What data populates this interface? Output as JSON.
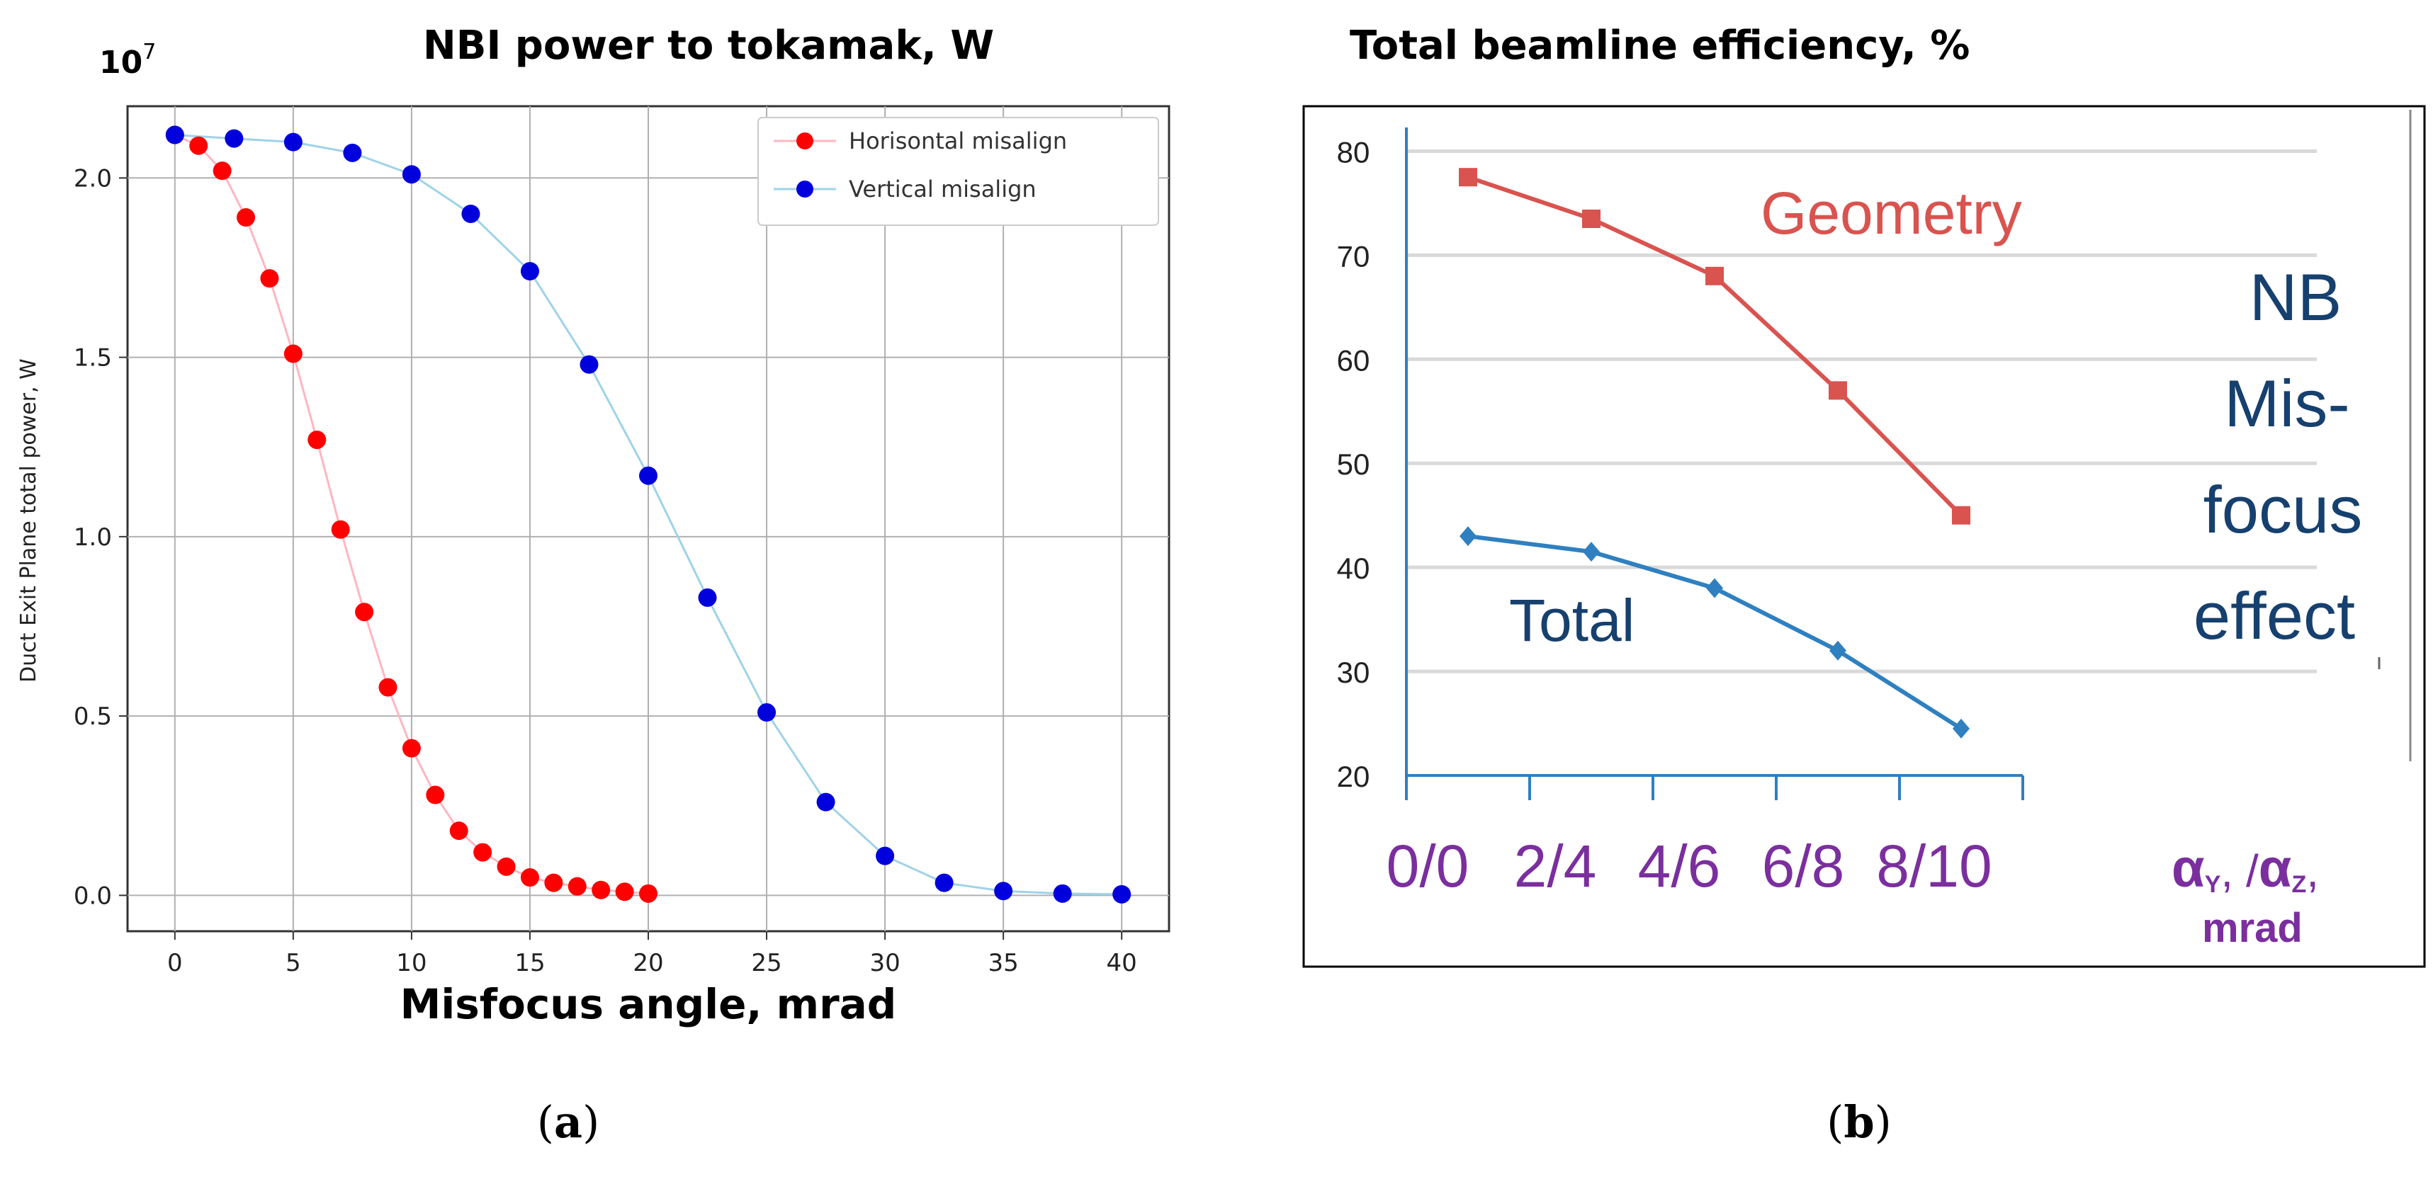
{
  "chart_data": [
    {
      "type": "line",
      "title": "NBI power to tokamak, W",
      "multiplier_label": "10",
      "multiplier_exponent": "7",
      "xlabel": "Misfocus angle, mrad",
      "ylabel": "Duct Exit Plane total power, W",
      "xlim": [
        -2,
        42
      ],
      "ylim": [
        -0.1,
        2.2
      ],
      "xticks": [
        0,
        5,
        10,
        15,
        20,
        25,
        30,
        35,
        40
      ],
      "yticks": [
        0.0,
        0.5,
        1.0,
        1.5,
        2.0
      ],
      "ytick_labels": [
        "0.0",
        "0.5",
        "1.0",
        "1.5",
        "2.0"
      ],
      "grid": true,
      "legend_position": "top-right",
      "series": [
        {
          "name": "Horisontal misalign",
          "color": "#ff0000",
          "line_color": "#ffb6c1",
          "x": [
            0,
            1,
            2,
            3,
            4,
            5,
            6,
            7,
            8,
            9,
            10,
            11,
            12,
            13,
            14,
            15,
            16,
            17,
            18,
            19,
            20
          ],
          "y": [
            2.12,
            2.09,
            2.02,
            1.89,
            1.72,
            1.51,
            1.27,
            1.02,
            0.79,
            0.58,
            0.41,
            0.28,
            0.18,
            0.12,
            0.08,
            0.05,
            0.035,
            0.025,
            0.015,
            0.01,
            0.005
          ]
        },
        {
          "name": "Vertical misalign",
          "color": "#0000dd",
          "line_color": "#9fd3e8",
          "x": [
            0,
            2.5,
            5,
            7.5,
            10,
            12.5,
            15,
            17.5,
            20,
            22.5,
            25,
            27.5,
            30,
            32.5,
            35,
            37.5,
            40
          ],
          "y": [
            2.12,
            2.11,
            2.1,
            2.07,
            2.01,
            1.9,
            1.74,
            1.48,
            1.17,
            0.83,
            0.51,
            0.26,
            0.11,
            0.035,
            0.012,
            0.005,
            0.003
          ]
        }
      ]
    },
    {
      "type": "line",
      "title": "Total beamline efficiency, %",
      "categories": [
        "0/0",
        "2/4",
        "4/6",
        "6/8",
        "8/10"
      ],
      "ylim": [
        20,
        85
      ],
      "yticks": [
        20,
        30,
        40,
        50,
        60,
        70,
        80
      ],
      "ytick_labels": [
        "20",
        "30",
        "40",
        "50",
        "60",
        "70",
        "80"
      ],
      "grid": true,
      "axis_label_alpha_y": "α",
      "axis_label_alpha_y_sub": "Y",
      "axis_label_sep": ", /",
      "axis_label_alpha_z": "α",
      "axis_label_alpha_z_sub": "Z",
      "axis_label_comma": ",",
      "axis_label_unit": "mrad",
      "side_text": [
        "NB",
        "Mis-",
        "focus",
        "effect"
      ],
      "series": [
        {
          "name": "Geometry",
          "color": "#d9534f",
          "marker": "square",
          "values": [
            77.5,
            73.5,
            68,
            57,
            45
          ]
        },
        {
          "name": "Total",
          "color": "#2f80c0",
          "marker": "diamond",
          "values": [
            43,
            41.5,
            38,
            32,
            24.5
          ]
        }
      ]
    }
  ],
  "captions": {
    "a": "(a)",
    "b": "(b)"
  },
  "caption_a_letter": "a",
  "caption_b_letter": "b"
}
